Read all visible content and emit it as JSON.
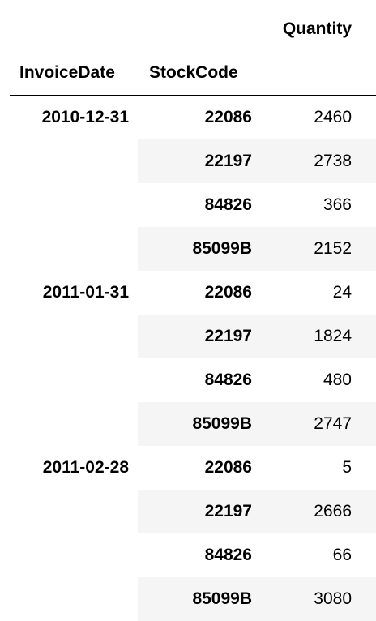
{
  "table": {
    "value_column_header": "Quantity",
    "index_headers": [
      "InvoiceDate",
      "StockCode"
    ],
    "row_shading": "#f5f5f5",
    "groups": [
      {
        "date": "2010-12-31",
        "rows": [
          {
            "stock_code": "22086",
            "quantity": "2460"
          },
          {
            "stock_code": "22197",
            "quantity": "2738"
          },
          {
            "stock_code": "84826",
            "quantity": "366"
          },
          {
            "stock_code": "85099B",
            "quantity": "2152"
          }
        ]
      },
      {
        "date": "2011-01-31",
        "rows": [
          {
            "stock_code": "22086",
            "quantity": "24"
          },
          {
            "stock_code": "22197",
            "quantity": "1824"
          },
          {
            "stock_code": "84826",
            "quantity": "480"
          },
          {
            "stock_code": "85099B",
            "quantity": "2747"
          }
        ]
      },
      {
        "date": "2011-02-28",
        "rows": [
          {
            "stock_code": "22086",
            "quantity": "5"
          },
          {
            "stock_code": "22197",
            "quantity": "2666"
          },
          {
            "stock_code": "84826",
            "quantity": "66"
          },
          {
            "stock_code": "85099B",
            "quantity": "3080"
          }
        ]
      }
    ]
  }
}
